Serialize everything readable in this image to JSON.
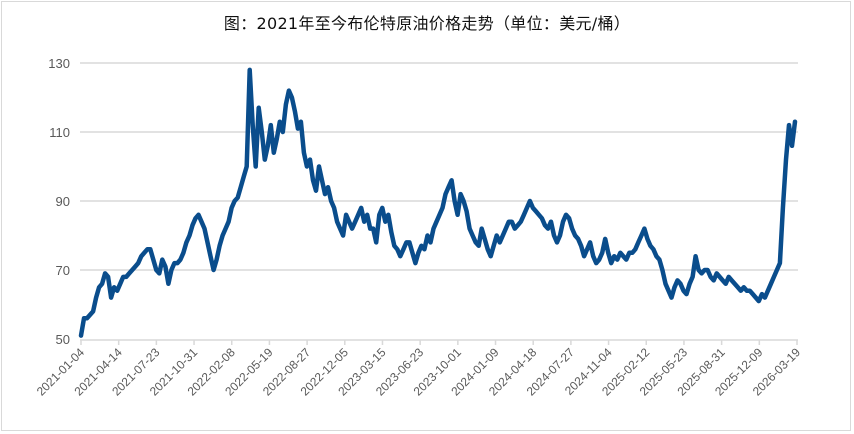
{
  "title": "图：2021年至今布伦特原油价格走势（单位：美元/桶）",
  "colors": {
    "line": "#0a4d8c",
    "grid": "#d9d9d9",
    "axis_text": "#595959",
    "border": "#d9d9d9"
  },
  "chart_data": {
    "type": "line",
    "title": "图：2021年至今布伦特原油价格走势（单位：美元/桶）",
    "xlabel": "",
    "ylabel": "",
    "ylim": [
      50,
      130
    ],
    "yticks": [
      50,
      70,
      90,
      110,
      130
    ],
    "grid": true,
    "legend": null,
    "xtick_labels": [
      "2021-01-04",
      "2021-04-14",
      "2021-07-23",
      "2021-10-31",
      "2022-02-08",
      "2022-05-19",
      "2022-08-27",
      "2022-12-05",
      "2023-03-15",
      "2023-06-23",
      "2023-10-01",
      "2024-01-09",
      "2024-04-18",
      "2024-07-27",
      "2024-11-04",
      "2025-02-12",
      "2025-05-23",
      "2025-08-31",
      "2025-12-09",
      "2026-03-19"
    ],
    "series": [
      {
        "name": "布伦特原油价格",
        "x_index_note": "values at approx. equally spaced points from 2021-01-04 to 2026-03-19",
        "values": [
          51,
          56,
          56,
          57,
          58,
          62,
          65,
          66,
          69,
          68,
          62,
          65,
          64,
          66,
          68,
          68,
          69,
          70,
          71,
          72,
          74,
          75,
          76,
          76,
          73,
          70,
          69,
          73,
          71,
          66,
          70,
          72,
          72,
          73,
          75,
          78,
          80,
          83,
          85,
          86,
          84,
          82,
          78,
          74,
          70,
          73,
          77,
          80,
          82,
          84,
          88,
          90,
          91,
          94,
          97,
          100,
          128,
          112,
          100,
          117,
          110,
          102,
          106,
          112,
          104,
          108,
          113,
          110,
          118,
          122,
          120,
          116,
          111,
          113,
          104,
          100,
          102,
          96,
          93,
          100,
          96,
          92,
          94,
          90,
          88,
          84,
          82,
          80,
          86,
          84,
          82,
          84,
          86,
          88,
          84,
          86,
          82,
          82,
          78,
          86,
          88,
          84,
          86,
          81,
          77,
          76,
          74,
          76,
          78,
          78,
          75,
          72,
          75,
          77,
          76,
          80,
          78,
          82,
          84,
          86,
          88,
          92,
          94,
          96,
          90,
          86,
          92,
          90,
          87,
          82,
          80,
          78,
          77,
          82,
          79,
          76,
          74,
          77,
          80,
          78,
          80,
          82,
          84,
          84,
          82,
          83,
          84,
          86,
          88,
          90,
          88,
          87,
          86,
          85,
          83,
          82,
          84,
          80,
          78,
          80,
          84,
          86,
          85,
          82,
          80,
          79,
          77,
          74,
          76,
          78,
          74,
          72,
          73,
          75,
          79,
          75,
          72,
          74,
          73,
          75,
          74,
          73,
          75,
          75,
          76,
          78,
          80,
          82,
          79,
          77,
          76,
          74,
          73,
          70,
          66,
          64,
          62,
          65,
          67,
          66,
          64,
          63,
          66,
          68,
          74,
          70,
          69,
          70,
          70,
          68,
          67,
          69,
          68,
          67,
          66,
          68,
          67,
          66,
          65,
          64,
          65,
          64,
          64,
          63,
          62,
          61,
          63,
          62,
          64,
          66,
          68,
          70,
          72,
          88,
          102,
          112,
          106,
          113
        ]
      }
    ]
  },
  "axes": {
    "y_labels": [
      "130",
      "110",
      "90",
      "70",
      "50"
    ],
    "x_labels": [
      "2021-01-04",
      "2021-04-14",
      "2021-07-23",
      "2021-10-31",
      "2022-02-08",
      "2022-05-19",
      "2022-08-27",
      "2022-12-05",
      "2023-03-15",
      "2023-06-23",
      "2023-10-01",
      "2024-01-09",
      "2024-04-18",
      "2024-07-27",
      "2024-11-04",
      "2025-02-12",
      "2025-05-23",
      "2025-08-31",
      "2025-12-09",
      "2026-03-19"
    ]
  }
}
